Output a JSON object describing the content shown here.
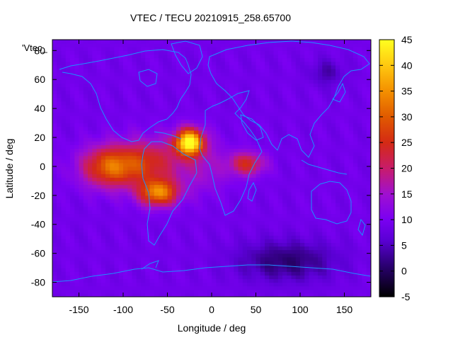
{
  "chart_data": {
    "type": "heatmap",
    "title": "VTEC / TECU 20210915_258.65700",
    "xlabel": "Longitude / deg",
    "ylabel": "Latitude / deg",
    "key_label": "'Vtec_",
    "xlim": [
      -180,
      180
    ],
    "ylim": [
      -90,
      87.5
    ],
    "x_ticks": [
      -150,
      -100,
      -50,
      0,
      50,
      100,
      150
    ],
    "y_ticks": [
      -80,
      -60,
      -40,
      -20,
      0,
      20,
      40,
      60,
      80
    ],
    "colorbar": {
      "min": -5,
      "max": 45,
      "ticks": [
        -5,
        0,
        5,
        10,
        15,
        20,
        25,
        30,
        35,
        40,
        45
      ],
      "palette": "black-purple-red-orange-yellow"
    },
    "background_vtec": 9,
    "features": [
      {
        "name": "equatorial anomaly crest over South America / Atlantic",
        "lon": -25,
        "lat": 17,
        "peak_vtec": 45
      },
      {
        "name": "southern crest over South America",
        "lon": -60,
        "lat": -18,
        "peak_vtec": 34
      },
      {
        "name": "anomaly over Pacific / Central America",
        "lon": -115,
        "lat": 0,
        "peak_vtec": 32
      },
      {
        "name": "enhancement over East Africa / Indian Ocean",
        "lon": 40,
        "lat": 2,
        "peak_vtec": 24
      },
      {
        "name": "depletion over Southern Ocean",
        "lon": 85,
        "lat": -65,
        "peak_vtec": 1
      },
      {
        "name": "depletion over East Siberia",
        "lon": 130,
        "lat": 65,
        "peak_vtec": 4
      }
    ],
    "coastlines": true,
    "coastline_color": "#1e90ff"
  }
}
